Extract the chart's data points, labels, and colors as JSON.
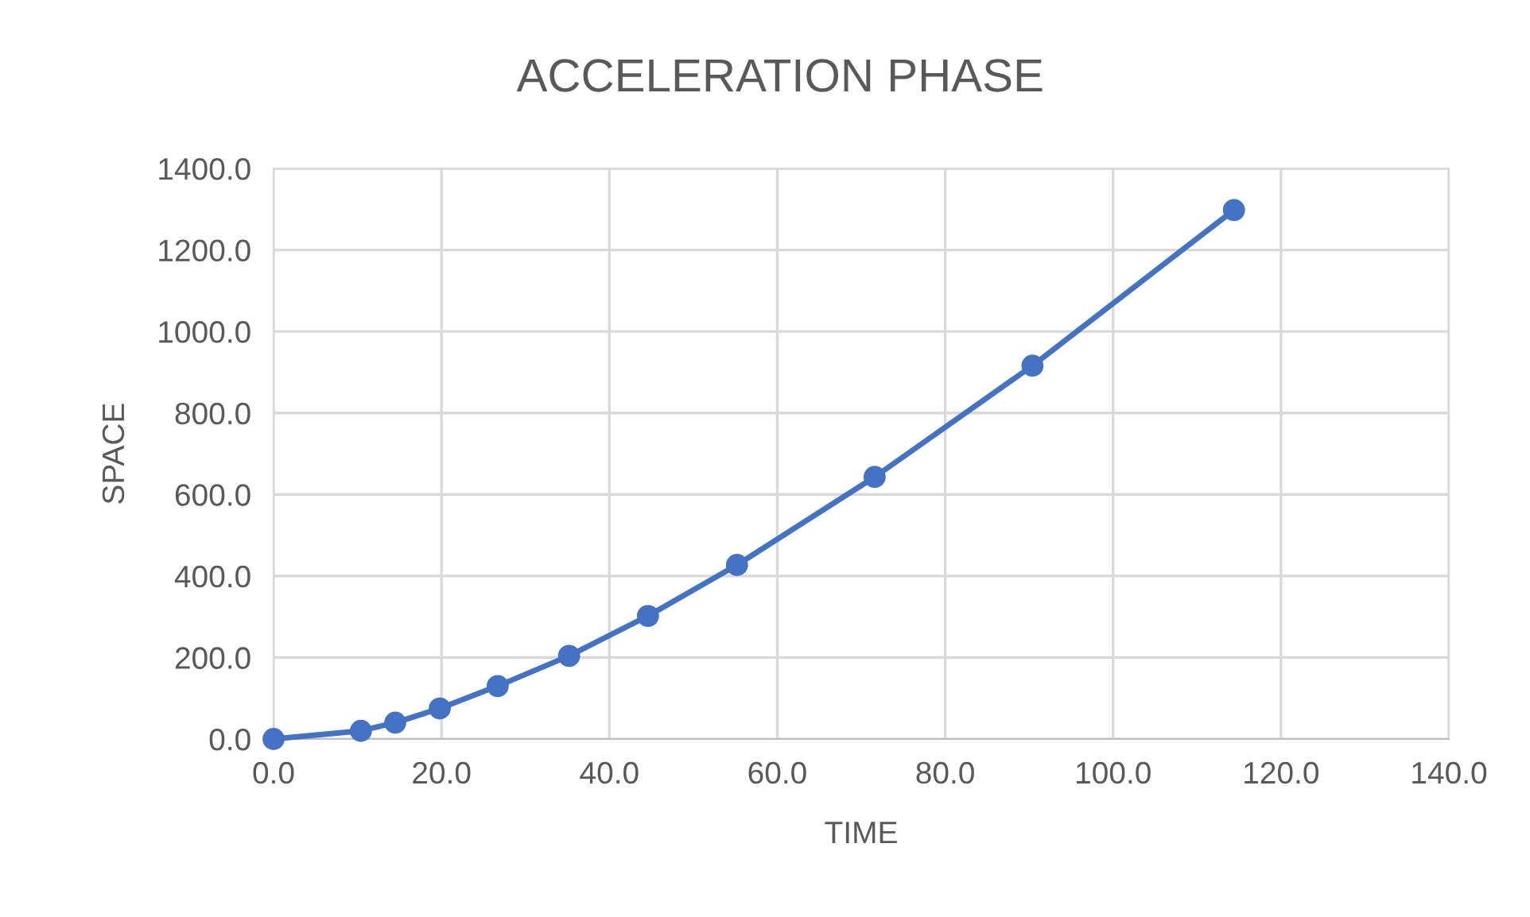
{
  "chart_data": {
    "type": "line",
    "title": "ACCELERATION PHASE",
    "xlabel": "TIME",
    "ylabel": "SPACE",
    "series": [
      {
        "color": "#4472c4",
        "x": [
          0,
          10.4,
          14.5,
          19.8,
          26.7,
          35.2,
          44.6,
          55.2,
          71.6,
          90.4,
          114.4
        ],
        "values": [
          0,
          20,
          40,
          75,
          130,
          204,
          302,
          427,
          643,
          916,
          1298
        ]
      }
    ],
    "xlim": [
      0,
      140
    ],
    "xticks": [
      {
        "value": 0,
        "label": "0.0"
      },
      {
        "value": 20,
        "label": "20.0"
      },
      {
        "value": 40,
        "label": "40.0"
      },
      {
        "value": 60,
        "label": "60.0"
      },
      {
        "value": 80,
        "label": "80.0"
      },
      {
        "value": 100,
        "label": "100.0"
      },
      {
        "value": 120,
        "label": "120.0"
      },
      {
        "value": 140,
        "label": "140.0"
      }
    ],
    "ylim": [
      0,
      1400
    ],
    "yticks": [
      {
        "value": 0,
        "label": "0.0"
      },
      {
        "value": 200,
        "label": "200.0"
      },
      {
        "value": 400,
        "label": "400.0"
      },
      {
        "value": 600,
        "label": "600.0"
      },
      {
        "value": 800,
        "label": "800.0"
      },
      {
        "value": 1000,
        "label": "1000.0"
      },
      {
        "value": 1200,
        "label": "1200.0"
      },
      {
        "value": 1400,
        "label": "1400.0"
      }
    ],
    "grid": true,
    "marker": "circle",
    "line_style": "solid"
  }
}
